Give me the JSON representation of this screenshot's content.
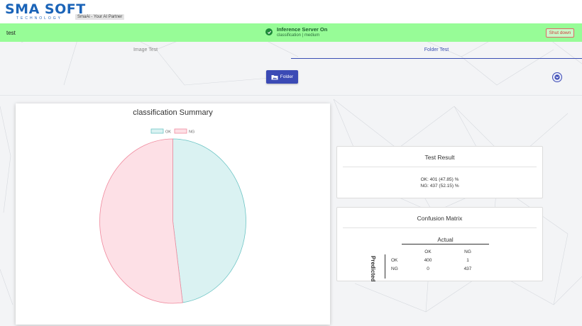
{
  "header": {
    "logo_text": "SMA SOFT",
    "logo_subtext": "TECHNOLOGY",
    "tagline": "SmaAi - Your AI Partner"
  },
  "status": {
    "project_name": "test",
    "server_title": "Inference Server On",
    "server_subtitle": "classification | medium",
    "shutdown_label": "Shut down",
    "colors": {
      "bar": "#97fc97",
      "shutdown": "#d23c3c"
    }
  },
  "tabs": [
    {
      "label": "Image Test",
      "active": false
    },
    {
      "label": "Folder Test",
      "active": true
    }
  ],
  "folder_button": {
    "label": "Folder",
    "icon": "folder-image-icon"
  },
  "toggle_icon": "chevron-down-icon",
  "chart_data": {
    "type": "pie",
    "title": "classification Summary",
    "categories": [
      "OK",
      "NG"
    ],
    "values": [
      401,
      437
    ],
    "colors": [
      "#daf2f2",
      "#fde0e6"
    ],
    "borders": [
      "#6ec5c5",
      "#f08a9e"
    ],
    "legend": "top"
  },
  "test_result": {
    "title": "Test Result",
    "ok_label": "OK:",
    "ok_value": "401 (47.85) %",
    "ng_label": "NG:",
    "ng_value": "437 (52.15) %"
  },
  "confusion_matrix": {
    "title": "Confusion Matrix",
    "actual_label": "Actual",
    "predicted_label": "Predicted",
    "columns": [
      "OK",
      "NG"
    ],
    "rows": [
      {
        "label": "OK",
        "values": [
          "400",
          "1"
        ]
      },
      {
        "label": "NG",
        "values": [
          "0",
          "437"
        ]
      }
    ]
  }
}
